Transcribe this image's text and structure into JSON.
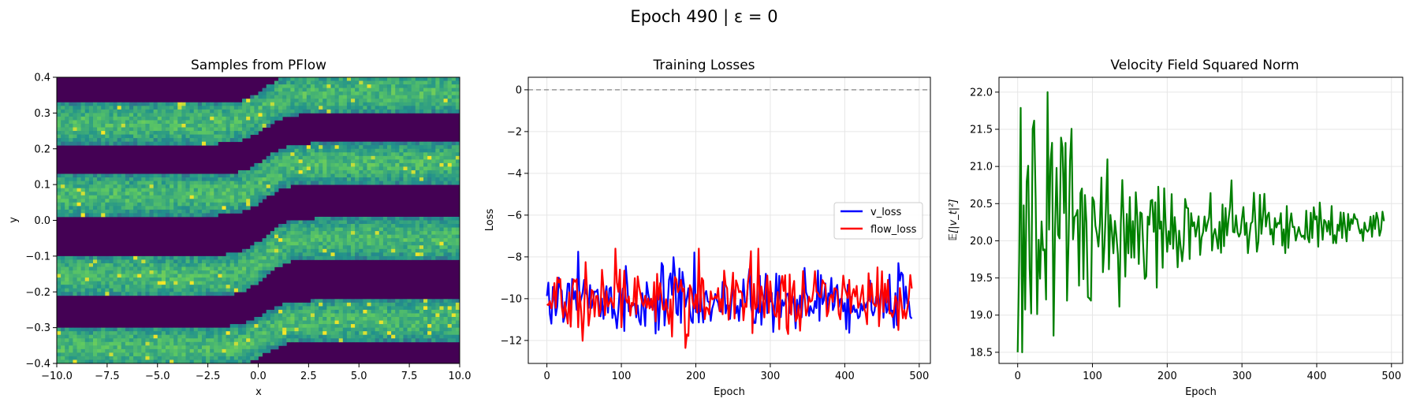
{
  "suptitle": "Epoch 490 | ε = 0",
  "chart_data": [
    {
      "type": "heatmap",
      "title": "Samples from PFlow",
      "xlabel": "x",
      "ylabel": "y",
      "xlim": [
        -10,
        10
      ],
      "ylim": [
        -0.4,
        0.4
      ],
      "xticks": [
        -10,
        -7.5,
        -5,
        -2.5,
        0,
        2.5,
        5,
        7.5,
        10
      ],
      "xtick_labels": [
        "−10.0",
        "−7.5",
        "−5.0",
        "−2.5",
        "0.0",
        "2.5",
        "5.0",
        "7.5",
        "10.0"
      ],
      "yticks": [
        -0.4,
        -0.3,
        -0.2,
        -0.1,
        0.0,
        0.1,
        0.2,
        0.3,
        0.4
      ],
      "ytick_labels": [
        "−0.4",
        "−0.3",
        "−0.2",
        "−0.1",
        "0.0",
        "0.1",
        "0.2",
        "0.3",
        "0.4"
      ],
      "colormap": "viridis",
      "band_centers_left": [
        -0.355,
        -0.155,
        0.07,
        0.27
      ],
      "band_centers_right": [
        -0.28,
        -0.05,
        0.16,
        0.355
      ],
      "band_halfwidth": 0.045,
      "transition_x": 0.3,
      "grid": false
    },
    {
      "type": "line",
      "title": "Training Losses",
      "xlabel": "Epoch",
      "ylabel": "Loss",
      "xlim": [
        -25,
        515
      ],
      "ylim": [
        -13.1,
        0.6
      ],
      "xticks": [
        0,
        100,
        200,
        300,
        400,
        500
      ],
      "xtick_labels": [
        "0",
        "100",
        "200",
        "300",
        "400",
        "500"
      ],
      "yticks": [
        0,
        -2,
        -4,
        -6,
        -8,
        -10,
        -12
      ],
      "ytick_labels": [
        "0",
        "−2",
        "−4",
        "−6",
        "−8",
        "−10",
        "−12"
      ],
      "grid": true,
      "legend_position": "center-right",
      "reference_line": 0,
      "series": [
        {
          "name": "v_loss",
          "color": "#0000ff",
          "x_range": [
            0,
            490
          ],
          "mean": -10.1,
          "spread": 0.7
        },
        {
          "name": "flow_loss",
          "color": "#ff0000",
          "x_range": [
            0,
            490
          ],
          "mean": -10.0,
          "spread": 0.75
        }
      ]
    },
    {
      "type": "line",
      "title": "Velocity Field Squared Norm",
      "xlabel": "Epoch",
      "ylabel": "𝔼[|v_t|²]",
      "xlim": [
        -25,
        515
      ],
      "ylim": [
        18.35,
        22.2
      ],
      "xticks": [
        0,
        100,
        200,
        300,
        400,
        500
      ],
      "xtick_labels": [
        "0",
        "100",
        "200",
        "300",
        "400",
        "500"
      ],
      "yticks": [
        18.5,
        19.0,
        19.5,
        20.0,
        20.5,
        21.0,
        21.5,
        22.0
      ],
      "ytick_labels": [
        "18.5",
        "19.0",
        "19.5",
        "20.0",
        "20.5",
        "21.0",
        "21.5",
        "22.0"
      ],
      "grid": true,
      "series": [
        {
          "color": "#008000",
          "x_range": [
            0,
            490
          ],
          "start_range": [
            18.5,
            22.0
          ],
          "end_range": [
            20.1,
            20.4
          ],
          "center": 20.2
        }
      ]
    }
  ]
}
